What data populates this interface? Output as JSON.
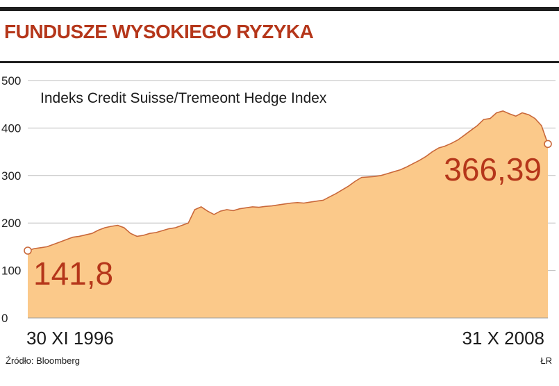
{
  "header": {
    "title": "FUNDUSZE WYSOKIEGO RYZYKA"
  },
  "footer": {
    "source": "Źródło: Bloomberg",
    "credit": "ŁR"
  },
  "colors": {
    "accent": "#b5361a",
    "area_fill": "#fbc98a",
    "line": "#c9683a"
  },
  "chart_data": {
    "type": "area",
    "title": "Indeks Credit Suisse/Tremeont Hedge Index",
    "xlabel": "",
    "ylabel": "",
    "ylim": [
      0,
      500
    ],
    "yticks": [
      0,
      100,
      200,
      300,
      400,
      500
    ],
    "grid": true,
    "x_start_label": "30 XI 1996",
    "x_end_label": "31 X 2008",
    "start_value_label": "141,8",
    "end_value_label": "366,39",
    "series": [
      {
        "values": [
          141.8,
          146,
          148,
          150,
          155,
          160,
          165,
          170,
          172,
          175,
          178,
          185,
          190,
          193,
          195,
          190,
          178,
          172,
          174,
          178,
          180,
          184,
          188,
          190,
          195,
          200,
          228,
          234,
          225,
          218,
          225,
          228,
          226,
          230,
          232,
          234,
          233,
          235,
          236,
          238,
          240,
          242,
          243,
          242,
          244,
          246,
          248,
          255,
          262,
          270,
          278,
          288,
          296,
          297,
          298,
          300,
          304,
          308,
          312,
          318,
          325,
          332,
          340,
          350,
          358,
          362,
          368,
          375,
          385,
          395,
          405,
          418,
          420,
          432,
          436,
          430,
          425,
          432,
          428,
          420,
          405,
          366.39
        ]
      }
    ]
  }
}
